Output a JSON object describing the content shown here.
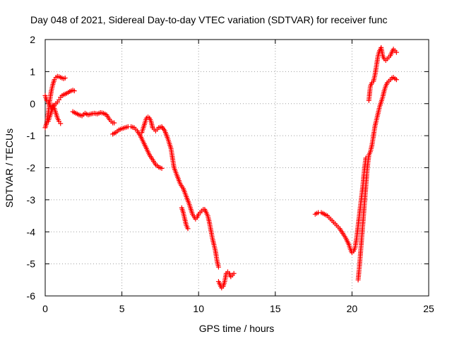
{
  "chart_data": {
    "type": "scatter",
    "title": "Day 048 of 2021, Sidereal Day-to-day VTEC variation (SDTVAR) for receiver func",
    "xlabel": "GPS time / hours",
    "ylabel": "SDTVAR / TECUs",
    "xlim": [
      0,
      25
    ],
    "ylim": [
      -6,
      2
    ],
    "xticks": [
      0,
      5,
      10,
      15,
      20,
      25
    ],
    "yticks": [
      -6,
      -5,
      -4,
      -3,
      -2,
      -1,
      0,
      1,
      2
    ],
    "grid": true,
    "marker": "+",
    "color": "#ff0000",
    "series": [
      {
        "name": "SDTVAR",
        "segments": [
          [
            [
              0.0,
              -0.75
            ],
            [
              0.1,
              -0.6
            ],
            [
              0.2,
              -0.3
            ],
            [
              0.3,
              0.1
            ],
            [
              0.4,
              0.4
            ],
            [
              0.5,
              0.6
            ],
            [
              0.6,
              0.75
            ],
            [
              0.7,
              0.82
            ],
            [
              0.8,
              0.85
            ],
            [
              0.9,
              0.84
            ],
            [
              1.0,
              0.82
            ],
            [
              1.1,
              0.8
            ],
            [
              1.2,
              0.78
            ],
            [
              1.3,
              0.8
            ]
          ],
          [
            [
              0.0,
              0.25
            ],
            [
              0.1,
              0.1
            ],
            [
              0.2,
              0.05
            ],
            [
              0.3,
              -0.05
            ],
            [
              0.4,
              -0.15
            ],
            [
              0.5,
              -0.05
            ],
            [
              0.6,
              -0.15
            ],
            [
              0.7,
              -0.3
            ],
            [
              0.8,
              -0.45
            ],
            [
              0.9,
              -0.55
            ],
            [
              1.0,
              -0.62
            ]
          ],
          [
            [
              0.2,
              -0.55
            ],
            [
              0.3,
              -0.4
            ],
            [
              0.4,
              -0.25
            ],
            [
              0.5,
              -0.15
            ],
            [
              0.6,
              -0.05
            ],
            [
              0.7,
              0.0
            ],
            [
              0.8,
              0.05
            ],
            [
              0.9,
              0.12
            ],
            [
              1.0,
              0.2
            ],
            [
              1.1,
              0.25
            ],
            [
              1.2,
              0.28
            ],
            [
              1.3,
              0.3
            ],
            [
              1.4,
              0.32
            ],
            [
              1.5,
              0.35
            ],
            [
              1.6,
              0.38
            ],
            [
              1.7,
              0.4
            ],
            [
              1.8,
              0.42
            ],
            [
              1.9,
              0.4
            ]
          ],
          [
            [
              1.8,
              -0.25
            ],
            [
              2.0,
              -0.3
            ],
            [
              2.2,
              -0.35
            ],
            [
              2.4,
              -0.38
            ],
            [
              2.6,
              -0.3
            ],
            [
              2.8,
              -0.35
            ],
            [
              3.0,
              -0.32
            ],
            [
              3.2,
              -0.3
            ],
            [
              3.4,
              -0.32
            ],
            [
              3.6,
              -0.28
            ],
            [
              3.8,
              -0.3
            ],
            [
              4.0,
              -0.35
            ],
            [
              4.2,
              -0.5
            ],
            [
              4.4,
              -0.6
            ],
            [
              4.5,
              -0.6
            ]
          ],
          [
            [
              4.4,
              -0.95
            ],
            [
              4.6,
              -0.9
            ],
            [
              4.8,
              -0.82
            ],
            [
              5.0,
              -0.78
            ],
            [
              5.2,
              -0.75
            ],
            [
              5.4,
              -0.72
            ],
            [
              5.6,
              -0.72
            ],
            [
              5.8,
              -0.75
            ],
            [
              6.0,
              -0.85
            ],
            [
              6.2,
              -1.0
            ],
            [
              6.4,
              -1.2
            ],
            [
              6.6,
              -1.4
            ],
            [
              6.8,
              -1.6
            ],
            [
              7.0,
              -1.75
            ],
            [
              7.2,
              -1.9
            ],
            [
              7.4,
              -1.98
            ],
            [
              7.6,
              -2.02
            ]
          ],
          [
            [
              6.3,
              -0.9
            ],
            [
              6.5,
              -0.6
            ],
            [
              6.6,
              -0.45
            ],
            [
              6.7,
              -0.42
            ],
            [
              6.8,
              -0.45
            ],
            [
              6.9,
              -0.55
            ],
            [
              7.0,
              -0.75
            ],
            [
              7.2,
              -0.85
            ],
            [
              7.4,
              -0.75
            ],
            [
              7.6,
              -0.72
            ],
            [
              7.8,
              -0.85
            ],
            [
              8.0,
              -1.1
            ],
            [
              8.2,
              -1.4
            ],
            [
              8.3,
              -1.7
            ],
            [
              8.4,
              -2.0
            ],
            [
              8.6,
              -2.25
            ],
            [
              8.8,
              -2.5
            ],
            [
              9.0,
              -2.65
            ],
            [
              9.2,
              -2.9
            ],
            [
              9.4,
              -3.15
            ],
            [
              9.6,
              -3.45
            ],
            [
              9.8,
              -3.6
            ],
            [
              9.9,
              -3.55
            ],
            [
              10.0,
              -3.45
            ],
            [
              10.1,
              -3.4
            ],
            [
              10.2,
              -3.35
            ],
            [
              10.3,
              -3.3
            ],
            [
              10.4,
              -3.3
            ],
            [
              10.5,
              -3.4
            ],
            [
              10.6,
              -3.5
            ],
            [
              10.7,
              -3.7
            ],
            [
              10.8,
              -3.95
            ],
            [
              10.9,
              -4.2
            ],
            [
              11.0,
              -4.4
            ],
            [
              11.1,
              -4.6
            ],
            [
              11.2,
              -4.9
            ],
            [
              11.3,
              -5.1
            ]
          ],
          [
            [
              8.9,
              -3.25
            ],
            [
              9.0,
              -3.4
            ],
            [
              9.1,
              -3.6
            ],
            [
              9.2,
              -3.8
            ],
            [
              9.3,
              -3.9
            ]
          ],
          [
            [
              11.3,
              -5.55
            ],
            [
              11.4,
              -5.65
            ],
            [
              11.5,
              -5.75
            ],
            [
              11.6,
              -5.7
            ],
            [
              11.7,
              -5.55
            ],
            [
              11.8,
              -5.3
            ],
            [
              11.9,
              -5.25
            ],
            [
              12.0,
              -5.3
            ],
            [
              12.1,
              -5.4
            ],
            [
              12.2,
              -5.35
            ],
            [
              12.3,
              -5.3
            ]
          ],
          [
            [
              17.6,
              -3.45
            ],
            [
              17.8,
              -3.4
            ],
            [
              18.0,
              -3.4
            ],
            [
              18.2,
              -3.45
            ],
            [
              18.4,
              -3.5
            ],
            [
              18.6,
              -3.6
            ],
            [
              18.8,
              -3.7
            ],
            [
              19.0,
              -3.8
            ],
            [
              19.2,
              -3.9
            ],
            [
              19.4,
              -4.05
            ],
            [
              19.6,
              -4.2
            ],
            [
              19.8,
              -4.4
            ],
            [
              19.9,
              -4.55
            ],
            [
              20.0,
              -4.65
            ],
            [
              20.1,
              -4.6
            ],
            [
              20.2,
              -4.5
            ],
            [
              20.3,
              -4.2
            ],
            [
              20.4,
              -3.8
            ],
            [
              20.5,
              -3.4
            ],
            [
              20.6,
              -3.0
            ],
            [
              20.7,
              -2.6
            ],
            [
              20.8,
              -2.1
            ],
            [
              20.9,
              -1.7
            ]
          ],
          [
            [
              20.4,
              -5.5
            ],
            [
              20.5,
              -5.0
            ],
            [
              20.6,
              -4.4
            ],
            [
              20.7,
              -3.8
            ],
            [
              20.8,
              -3.2
            ],
            [
              20.9,
              -2.6
            ],
            [
              21.0,
              -2.0
            ],
            [
              21.1,
              -1.6
            ],
            [
              21.2,
              -1.5
            ],
            [
              21.3,
              -1.3
            ],
            [
              21.4,
              -1.0
            ],
            [
              21.5,
              -0.7
            ],
            [
              21.6,
              -0.5
            ],
            [
              21.7,
              -0.3
            ],
            [
              21.8,
              -0.1
            ],
            [
              21.9,
              0.05
            ],
            [
              22.0,
              0.2
            ],
            [
              22.1,
              0.4
            ],
            [
              22.2,
              0.55
            ],
            [
              22.3,
              0.65
            ],
            [
              22.4,
              0.7
            ],
            [
              22.5,
              0.75
            ],
            [
              22.6,
              0.8
            ],
            [
              22.7,
              0.82
            ],
            [
              22.8,
              0.78
            ],
            [
              22.9,
              0.75
            ]
          ],
          [
            [
              21.1,
              0.1
            ],
            [
              21.2,
              0.55
            ],
            [
              21.3,
              0.65
            ],
            [
              21.4,
              0.7
            ],
            [
              21.5,
              0.9
            ],
            [
              21.6,
              1.2
            ],
            [
              21.7,
              1.5
            ],
            [
              21.8,
              1.65
            ],
            [
              21.9,
              1.75
            ],
            [
              22.0,
              1.5
            ],
            [
              22.1,
              1.4
            ],
            [
              22.2,
              1.35
            ],
            [
              22.3,
              1.4
            ],
            [
              22.4,
              1.45
            ],
            [
              22.5,
              1.5
            ],
            [
              22.6,
              1.6
            ],
            [
              22.7,
              1.7
            ],
            [
              22.8,
              1.65
            ],
            [
              22.9,
              1.6
            ]
          ]
        ]
      }
    ]
  }
}
